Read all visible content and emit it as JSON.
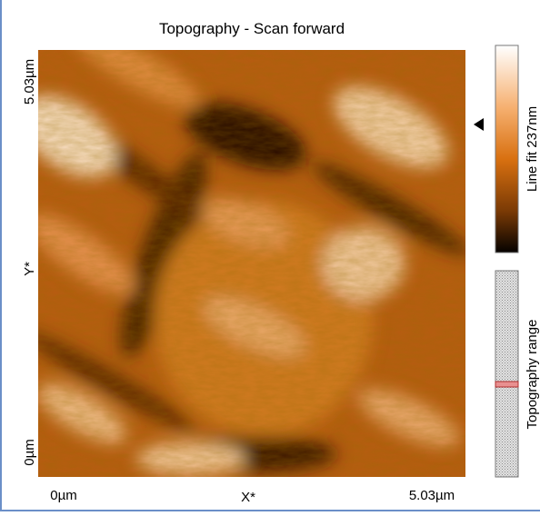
{
  "title": "Topography - Scan forward",
  "image": {
    "x_axis": {
      "start": "0µm",
      "label": "X*",
      "end": "5.03µm"
    },
    "y_axis": {
      "start": "0µm",
      "label": "Y*",
      "end": "5.03µm"
    }
  },
  "color_bar": {
    "label": "Line fit 237nm"
  },
  "range_bar": {
    "label": "Topography range"
  }
}
